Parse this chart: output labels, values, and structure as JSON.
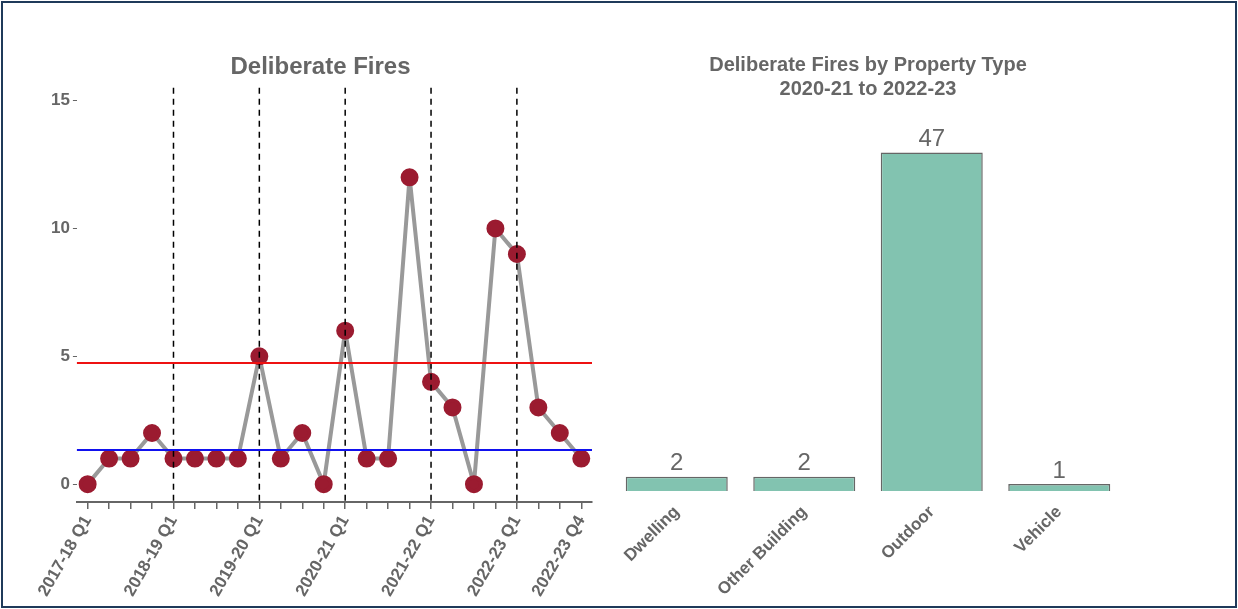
{
  "chart_data": [
    {
      "type": "line",
      "title": "Deliberate Fires",
      "categories": [
        "2017-18 Q1",
        null,
        null,
        null,
        "2018-19 Q1",
        null,
        null,
        null,
        "2019-20 Q1",
        null,
        null,
        null,
        "2020-21 Q1",
        null,
        null,
        null,
        "2021-22 Q1",
        null,
        null,
        null,
        "2022-23 Q1",
        null,
        null,
        "2022-23 Q4"
      ],
      "series": [
        {
          "color": "#999999",
          "colors": [
            "#9b1b30",
            "#9b1b30",
            "#9b1b30",
            "#9b1b30",
            "#9b1b30",
            "#9b1b30",
            "#9b1b30",
            "#9b1b30",
            "#9b1b30",
            "#9b1b30",
            "#9b1b30",
            "#9b1b30",
            "#9b1b30",
            "#9b1b30",
            "#9b1b30",
            "#9b1b30",
            "#9b1b30",
            "#9b1b30",
            "#9b1b30",
            "#9b1b30",
            "#9b1b30",
            "#9b1b30",
            "#9b1b30",
            "#9b1b30"
          ],
          "values": [
            0,
            1,
            1,
            2,
            1,
            1,
            1,
            1,
            5,
            1,
            2,
            0,
            6,
            1,
            1,
            12,
            4,
            3,
            0,
            10,
            9,
            3,
            2,
            1
          ]
        }
      ],
      "ylim": [
        -0.7,
        15.5
      ],
      "yticks": [
        0,
        5,
        10,
        15
      ],
      "grid": false,
      "legend": false,
      "marker": "circle",
      "line_style": "solid",
      "ref_lines": [
        {
          "axis": "x",
          "value": "2018-19 Q1",
          "color": "#000000",
          "line_style": "dashed"
        },
        {
          "axis": "x",
          "value": "2019-20 Q1",
          "color": "#000000",
          "line_style": "dashed"
        },
        {
          "axis": "x",
          "value": "2020-21 Q1",
          "color": "#000000",
          "line_style": "dashed"
        },
        {
          "axis": "x",
          "value": "2021-22 Q1",
          "color": "#000000",
          "line_style": "dashed"
        },
        {
          "axis": "x",
          "value": "2022-23 Q1",
          "color": "#000000",
          "line_style": "dashed"
        },
        {
          "axis": "y",
          "value": 4.74,
          "color": "#ee1111",
          "line_style": "solid"
        },
        {
          "axis": "y",
          "value": 1.34,
          "color": "#1111ee",
          "line_style": "solid"
        }
      ]
    },
    {
      "type": "bar",
      "title": "Deliberate Fires by Property Type\n2020-21 to 2022-23",
      "categories": [
        "Dwelling",
        "Other Building",
        "Outdoor",
        "Vehicle"
      ],
      "values": [
        2,
        2,
        47,
        1
      ],
      "color": "#82c3b0",
      "data_labels": true,
      "grid": false,
      "legend": false
    }
  ]
}
